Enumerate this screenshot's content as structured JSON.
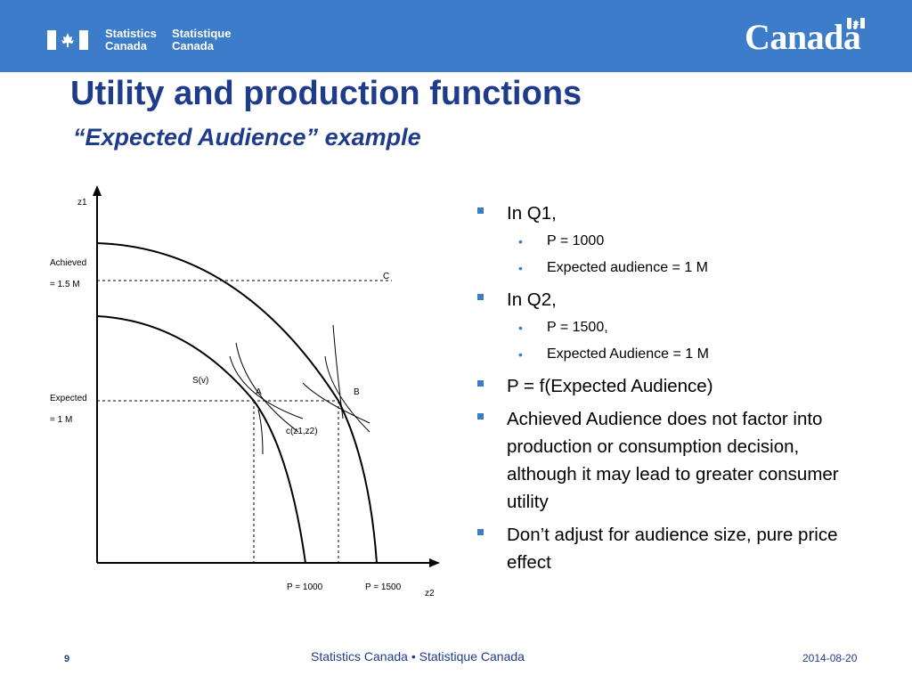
{
  "header": {
    "org_en": [
      "Statistics",
      "Canada"
    ],
    "org_fr": [
      "Statistique",
      "Canada"
    ],
    "wordmark": "Canadä"
  },
  "title": "Utility and production functions",
  "subtitle": "“Expected Audience” example",
  "diagram": {
    "y_axis": "z1",
    "x_axis": "z2",
    "achieved_label": [
      "Achieved",
      "= 1.5 M"
    ],
    "expected_label": [
      "Expected",
      "= 1 M"
    ],
    "p1000": "P = 1000",
    "p1500": "P = 1500",
    "point_a": "A",
    "point_b": "B",
    "point_c": "C",
    "sv_label": "S(v)",
    "c_label": "c(z1,z2)"
  },
  "bullets": [
    {
      "text": "In Q1,",
      "sub": [
        "P = 1000",
        "Expected audience  = 1 M"
      ]
    },
    {
      "text": "In Q2,",
      "sub": [
        "P = 1500,",
        "Expected Audience = 1 M"
      ]
    },
    {
      "text": "P = f(Expected Audience)",
      "sub": []
    },
    {
      "text": "Achieved Audience does not factor into production or consumption decision, although it may lead to greater consumer utility",
      "sub": []
    },
    {
      "text": "Don’t adjust for audience size, pure price effect",
      "sub": []
    }
  ],
  "footer": {
    "center": "Statistics Canada • Statistique Canada",
    "page": "9",
    "date": "2014-08-20"
  },
  "colors": {
    "header_bg": "#3c7cc8",
    "title": "#1f3c8c",
    "bullet": "#3c7cc8"
  }
}
